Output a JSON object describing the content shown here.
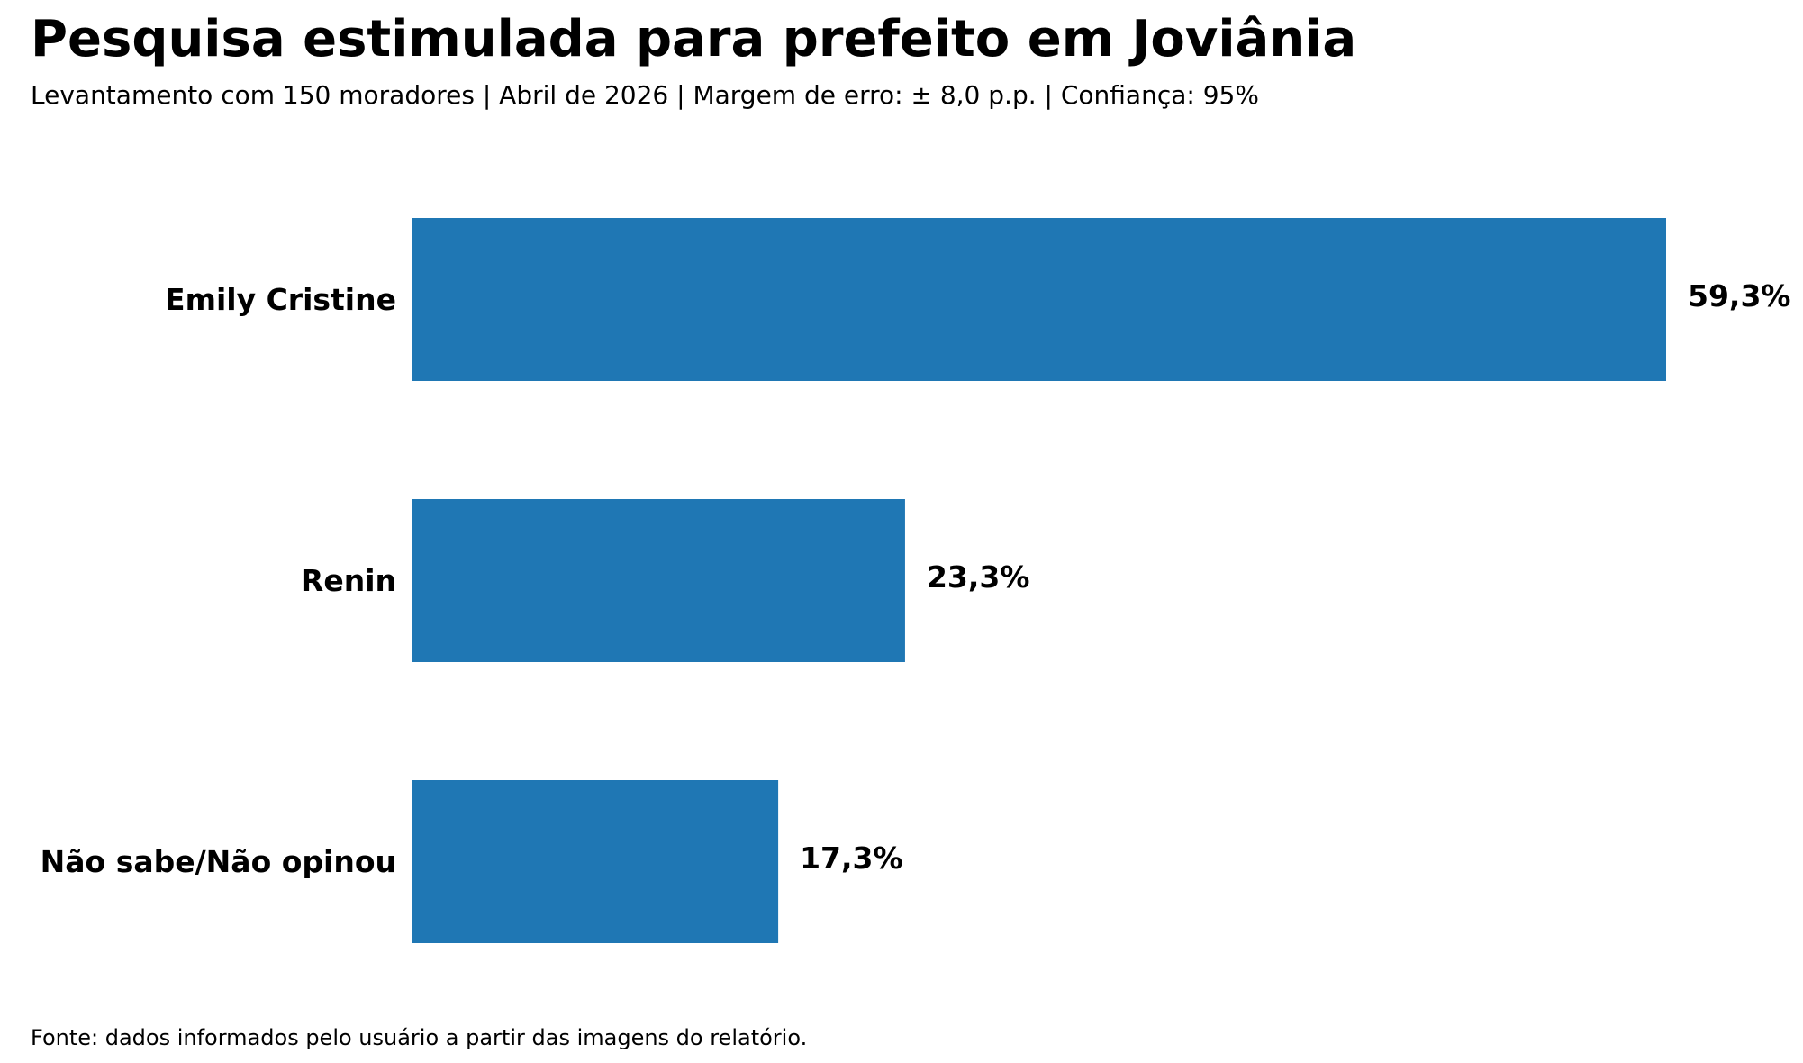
{
  "chart_data": {
    "type": "bar",
    "orientation": "horizontal",
    "title": "Pesquisa estimulada para prefeito em Joviânia",
    "subtitle": "Levantamento com 150 moradores | Abril de 2026 | Margem de erro: ± 8,0 p.p. | Confiança: 95%",
    "source": "Fonte: dados informados pelo usuário a partir das imagens do relatório.",
    "categories": [
      "Emily Cristine",
      "Renin",
      "Não sabe/Não opinou"
    ],
    "values": [
      59.3,
      23.3,
      17.3
    ],
    "value_labels": [
      "59,3%",
      "23,3%",
      "17,3%"
    ],
    "xlabel": "",
    "ylabel": "",
    "xlim": [
      0,
      59.3
    ],
    "grid": false,
    "legend": "none",
    "bar_color": "#1f77b4"
  }
}
